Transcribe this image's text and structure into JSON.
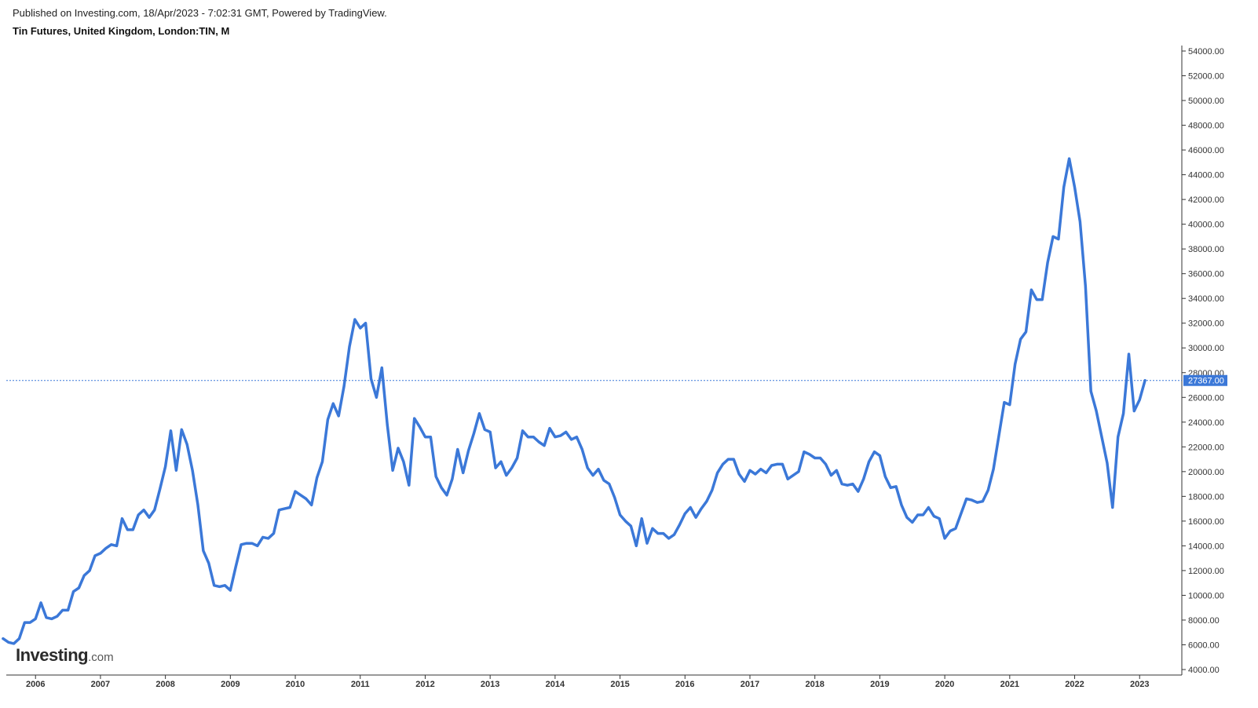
{
  "header": {
    "published": "Published on Investing.com, 18/Apr/2023 - 7:02:31 GMT, Powered by TradingView.",
    "title": "Tin Futures, United Kingdom, London:TIN, M"
  },
  "logo": {
    "main": "Investing",
    "suffix": ".com"
  },
  "colors": {
    "line": "#3b78d8",
    "last_label_bg": "#3b78d8",
    "axis": "#333333"
  },
  "chart_data": {
    "type": "line",
    "title": "Tin Futures, United Kingdom, London:TIN, M",
    "xlabel": "",
    "ylabel": "",
    "ylim": [
      4000,
      54000
    ],
    "xlim": [
      2005.55,
      2023.65
    ],
    "grid": false,
    "legend": "none",
    "y_ticks": [
      "4000.00",
      "6000.00",
      "8000.00",
      "10000.00",
      "12000.00",
      "14000.00",
      "16000.00",
      "18000.00",
      "20000.00",
      "22000.00",
      "24000.00",
      "26000.00",
      "28000.00",
      "30000.00",
      "32000.00",
      "34000.00",
      "36000.00",
      "38000.00",
      "40000.00",
      "42000.00",
      "44000.00",
      "46000.00",
      "48000.00",
      "50000.00",
      "52000.00",
      "54000.00"
    ],
    "x_ticks": [
      "2006",
      "2007",
      "2008",
      "2009",
      "2010",
      "2011",
      "2012",
      "2013",
      "2014",
      "2015",
      "2016",
      "2017",
      "2018",
      "2019",
      "2020",
      "2021",
      "2022",
      "2023"
    ],
    "last_value_label": "27367.00",
    "last_value": 27367,
    "series": [
      {
        "start": "2005-07",
        "frequency": "monthly",
        "values": [
          6500,
          6200,
          6100,
          6500,
          7800,
          7800,
          8100,
          9400,
          8200,
          8100,
          8300,
          8800,
          8800,
          10300,
          10600,
          11600,
          12000,
          13200,
          13400,
          13800,
          14100,
          14000,
          16200,
          15300,
          15300,
          16500,
          16900,
          16300,
          16900,
          18600,
          20400,
          23300,
          20100,
          23400,
          22200,
          20100,
          17300,
          13600,
          12600,
          10800,
          10700,
          10800,
          10400,
          12300,
          14100,
          14200,
          14200,
          14000,
          14700,
          14600,
          15000,
          16900,
          17000,
          17100,
          18400,
          18100,
          17800,
          17300,
          19500,
          20800,
          24200,
          25500,
          24500,
          26900,
          30100,
          32300,
          31600,
          32000,
          27500,
          26000,
          28400,
          23800,
          20100,
          21900,
          20800,
          18900,
          24300,
          23600,
          22800,
          22800,
          19600,
          18700,
          18100,
          19400,
          21800,
          19900,
          21700,
          23100,
          24700,
          23400,
          23200,
          20300,
          20800,
          19700,
          20300,
          21100,
          23300,
          22800,
          22800,
          22400,
          22100,
          23500,
          22800,
          22900,
          23200,
          22600,
          22800,
          21800,
          20300,
          19700,
          20200,
          19300,
          19000,
          17900,
          16500,
          16000,
          15600,
          14000,
          16200,
          14200,
          15400,
          15000,
          15000,
          14600,
          14900,
          15700,
          16600,
          17100,
          16300,
          17000,
          17600,
          18500,
          19900,
          20600,
          21000,
          21000,
          19800,
          19200,
          20100,
          19800,
          20200,
          19900,
          20500,
          20600,
          20600,
          19400,
          19700,
          20000,
          21600,
          21400,
          21100,
          21100,
          20600,
          19700,
          20100,
          19000,
          18900,
          19000,
          18400,
          19400,
          20800,
          21600,
          21300,
          19600,
          18700,
          18800,
          17300,
          16300,
          15900,
          16500,
          16500,
          17100,
          16400,
          16200,
          14600,
          15200,
          15400,
          16600,
          17800,
          17700,
          17500,
          17600,
          18500,
          20200,
          22900,
          25600,
          25400,
          28700,
          30700,
          31300,
          34700,
          33900,
          33900,
          36900,
          39000,
          38800,
          43000,
          45300,
          43000,
          40200,
          35000,
          26500,
          24900,
          22800,
          20700,
          17100,
          22800,
          24700,
          29500,
          24900,
          25800,
          27367
        ]
      }
    ]
  }
}
